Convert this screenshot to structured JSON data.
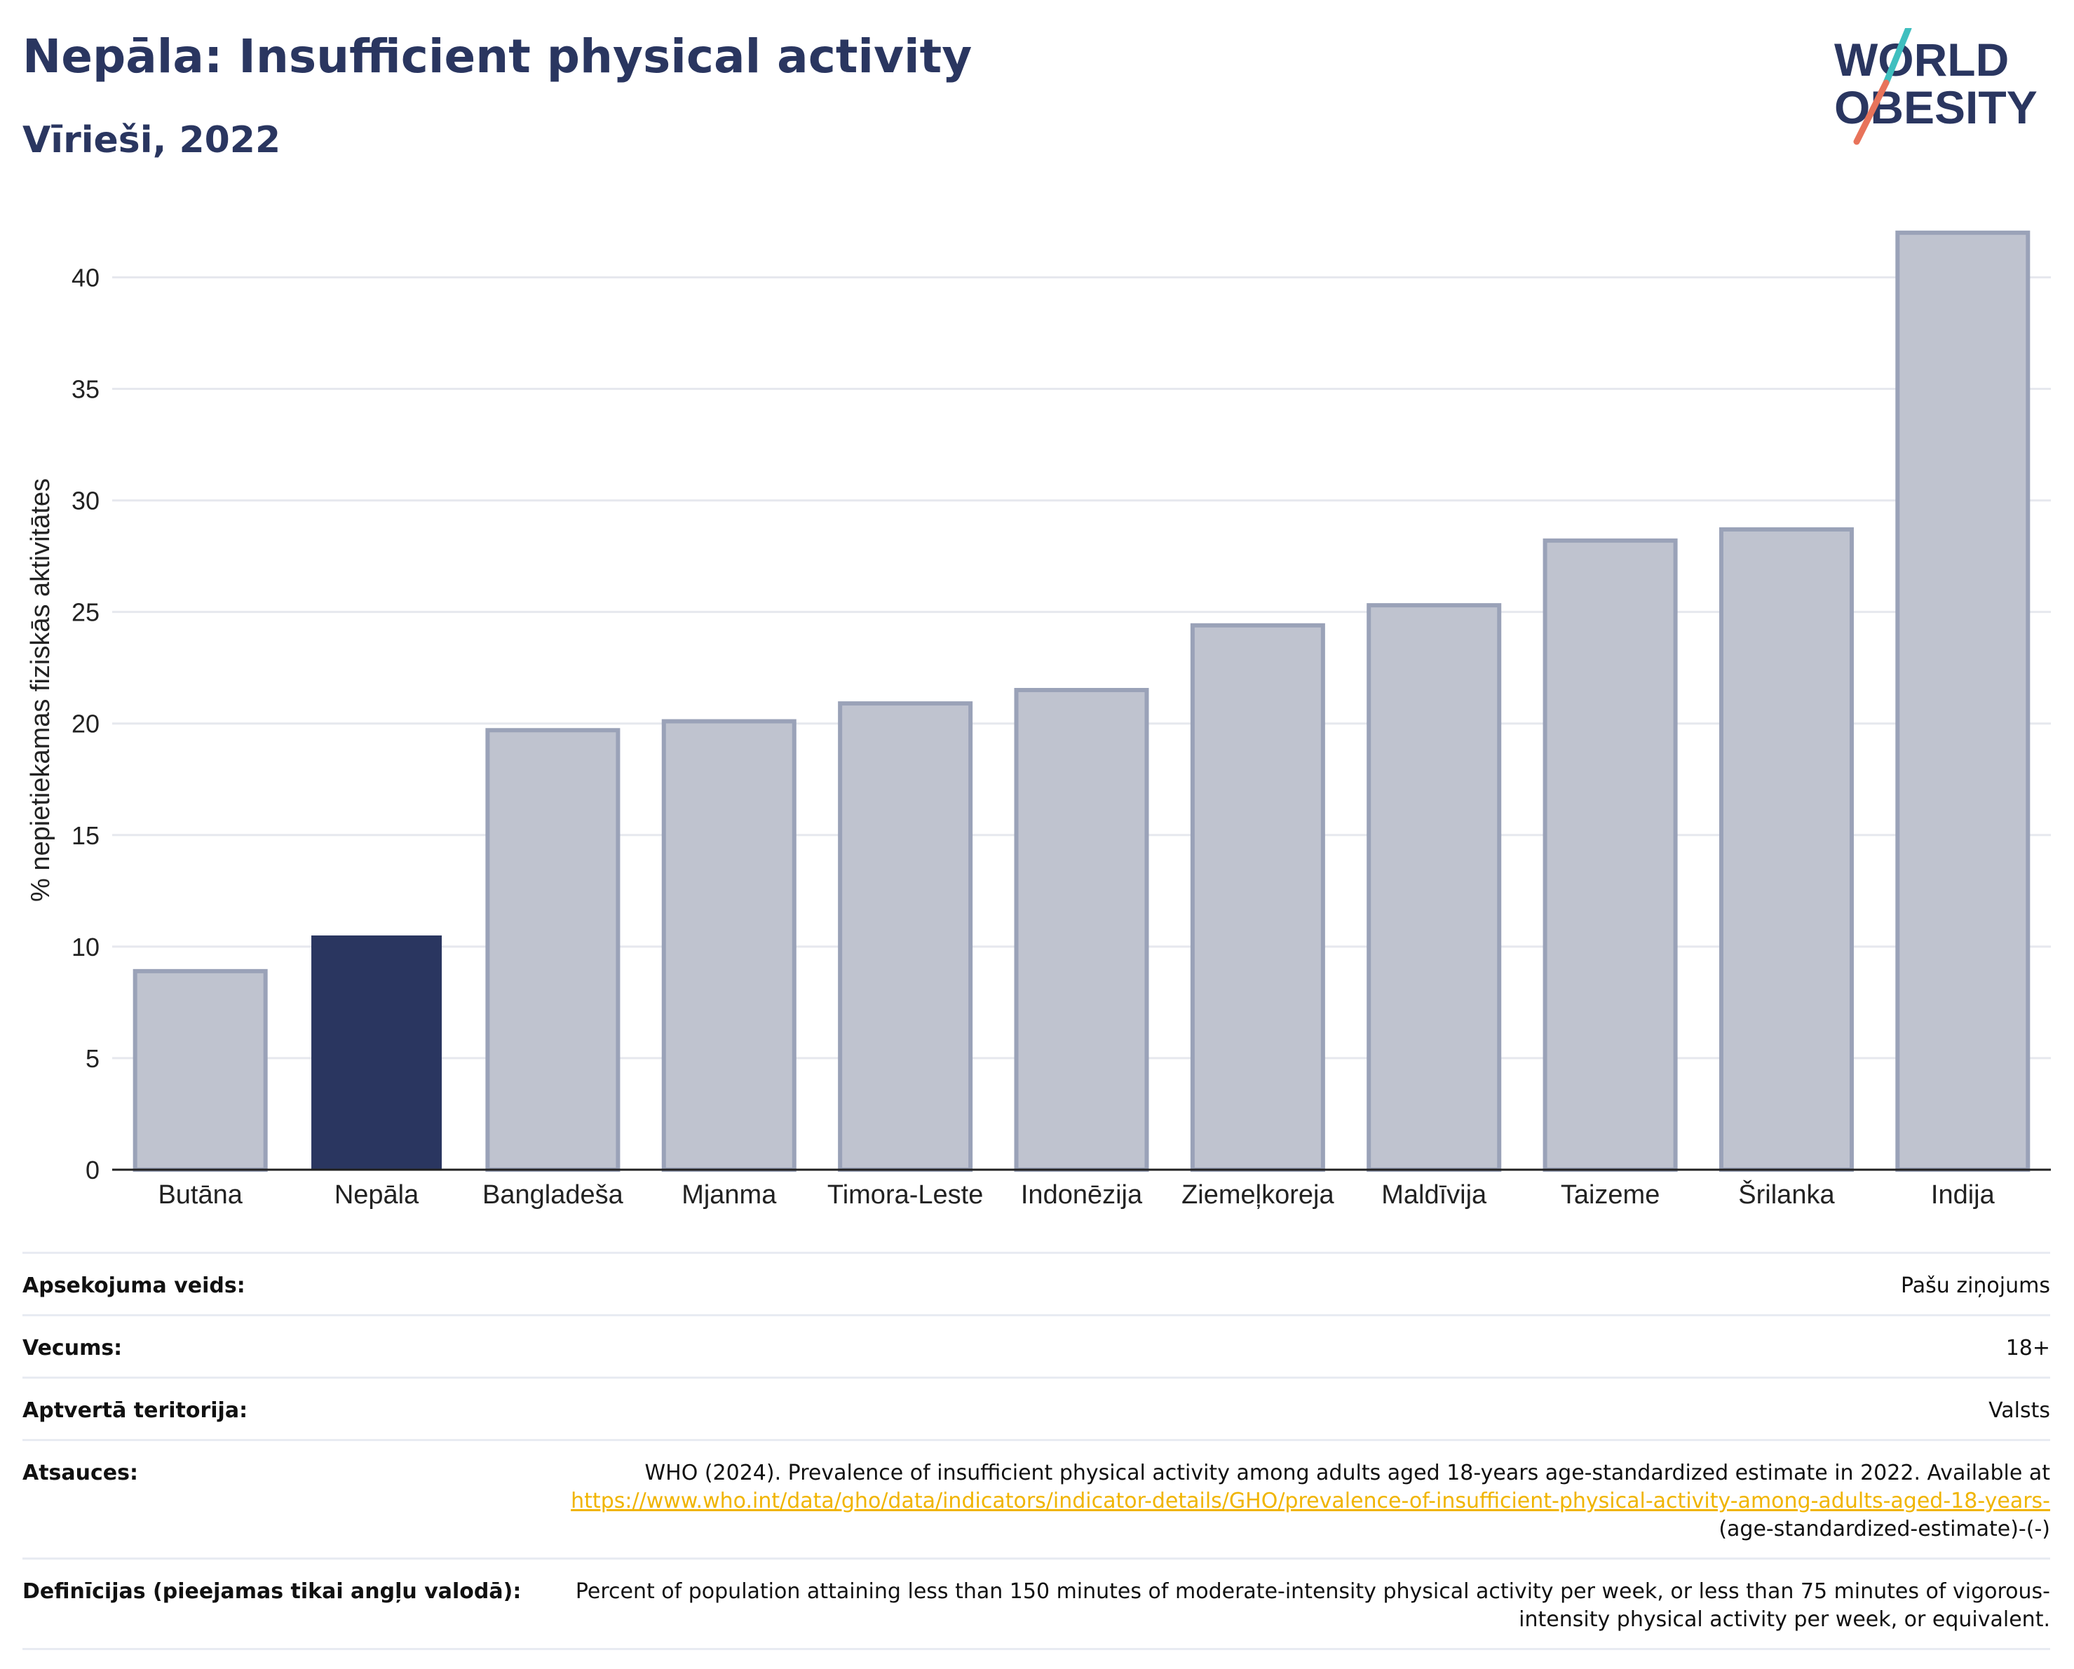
{
  "header": {
    "title": "Nepāla: Insufficient physical activity",
    "subtitle": "Vīrieši, 2022"
  },
  "logo": {
    "line1": "WORLD",
    "line2": "OBESITY",
    "colors": {
      "text": "#2a3660",
      "slash_top": "#3fbfbf",
      "slash_bottom": "#e8735a"
    }
  },
  "colors": {
    "highlight_bar": "#2a3660",
    "other_bar_fill": "#bfc3cf",
    "other_bar_stroke": "#9aa2b8",
    "grid": "#e6e8ee",
    "axis": "#222222"
  },
  "chart_data": {
    "type": "bar",
    "title": "Nepāla: Insufficient physical activity",
    "subtitle": "Vīrieši, 2022",
    "xlabel": "",
    "ylabel": "% nepietiekamas fiziskās aktivitātes",
    "ylim": [
      0,
      43
    ],
    "yticks": [
      0,
      5,
      10,
      15,
      20,
      25,
      30,
      35,
      40
    ],
    "grid": true,
    "highlight": "Nepāla",
    "categories": [
      "Butāna",
      "Nepāla",
      "Bangladeša",
      "Mjanma",
      "Timora-Leste",
      "Indonēzija",
      "Ziemeļkoreja",
      "Maldīvija",
      "Taizeme",
      "Šrilanka",
      "Indija"
    ],
    "values": [
      8.9,
      10.5,
      19.7,
      20.1,
      20.9,
      21.5,
      24.4,
      25.3,
      28.2,
      28.7,
      42.0
    ]
  },
  "metadata": [
    {
      "label": "Apsekojuma veids:",
      "value": "Pašu ziņojums"
    },
    {
      "label": "Vecums:",
      "value": "18+"
    },
    {
      "label": "Aptvertā teritorija:",
      "value": "Valsts"
    },
    {
      "label": "Atsauces:",
      "value": "WHO (2024). Prevalence of insufficient physical activity among adults aged 18-years age-standardized estimate in 2022. Available at ",
      "link": "https://www.who.int/data/gho/data/indicators/indicator-details/GHO/prevalence-of-insufficient-physical-activity-among-adults-aged-18-years-",
      "suffix": "(age-standardized-estimate)-(-)"
    },
    {
      "label": "Definīcijas (pieejamas tikai angļu valodā):",
      "value": "Percent of population attaining less than 150 minutes of moderate-intensity physical activity per week, or less than 75 minutes of vigorous-intensity physical activity per week, or equivalent."
    }
  ]
}
